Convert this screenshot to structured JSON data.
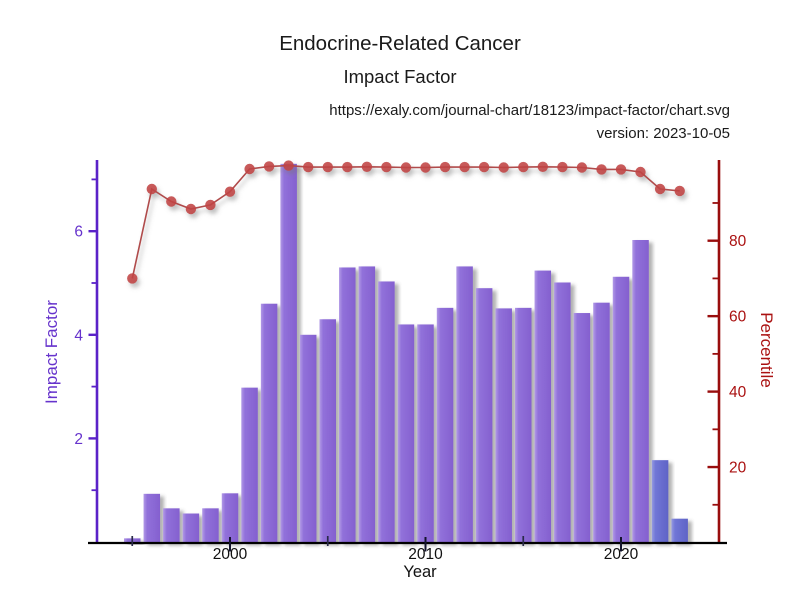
{
  "header": {
    "title": "Endocrine-Related Cancer",
    "subtitle": "Impact Factor",
    "url": "https://exaly.com/journal-chart/18123/impact-factor/chart.svg",
    "version": "version: 2023-10-05"
  },
  "chart_data": {
    "type": "bar",
    "title": "Endocrine-Related Cancer Impact Factor",
    "x": [
      1995,
      1996,
      1997,
      1998,
      1999,
      2000,
      2001,
      2002,
      2003,
      2004,
      2005,
      2006,
      2007,
      2008,
      2009,
      2010,
      2011,
      2012,
      2013,
      2014,
      2015,
      2016,
      2017,
      2018,
      2019,
      2020,
      2021,
      2022,
      2023
    ],
    "series": [
      {
        "name": "Impact Factor",
        "type": "bar",
        "axis": "left",
        "color": "#8b68d5",
        "values": [
          0.07,
          0.93,
          0.65,
          0.55,
          0.65,
          0.94,
          2.98,
          4.6,
          7.3,
          4.0,
          4.3,
          5.3,
          5.32,
          5.03,
          4.2,
          4.2,
          4.52,
          5.32,
          4.9,
          4.51,
          4.52,
          5.24,
          5.01,
          4.42,
          4.62,
          5.12,
          5.83,
          1.58,
          0.45
        ]
      },
      {
        "name": "Percentile",
        "type": "line",
        "axis": "right",
        "color": "#c04343",
        "values": [
          70,
          93.7,
          90.4,
          88.4,
          89.5,
          93,
          99,
          99.7,
          99.9,
          99.5,
          99.5,
          99.5,
          99.6,
          99.5,
          99.4,
          99.4,
          99.5,
          99.5,
          99.5,
          99.4,
          99.5,
          99.6,
          99.5,
          99.4,
          98.9,
          98.9,
          98.2,
          93.7,
          93.2
        ]
      }
    ],
    "highlight_years": [
      2022,
      2023
    ],
    "highlight_color": "#6b6fd2",
    "left_axis": {
      "label": "Impact Factor",
      "color": "#6633cc",
      "axis_color": "#5a22c8",
      "ticks": [
        2,
        4,
        6
      ],
      "minor_ticks": [
        1,
        3,
        5,
        7
      ],
      "range": [
        0,
        7.35
      ]
    },
    "right_axis": {
      "label": "Percentile",
      "color": "#aa1111",
      "axis_color": "#990d0d",
      "ticks": [
        20,
        40,
        60,
        80
      ],
      "minor_ticks": [
        10,
        30,
        50,
        70,
        90
      ],
      "range": [
        0,
        100
      ]
    },
    "x_axis": {
      "label": "Year",
      "color": "#111111",
      "ticks": [
        2000,
        2010,
        2020
      ],
      "minor_ticks": [
        1995,
        2005,
        2015
      ],
      "range": [
        1993.5,
        2024.5
      ]
    },
    "legend": "none",
    "grid": false
  }
}
